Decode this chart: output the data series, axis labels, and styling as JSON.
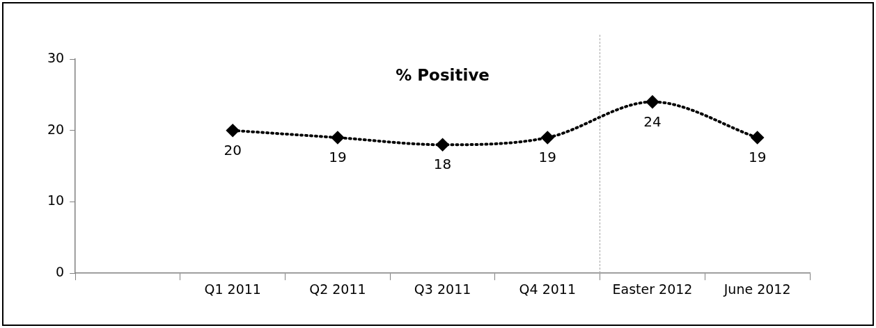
{
  "chart_data": {
    "type": "line",
    "title": "% Positive",
    "categories": [
      null,
      "Q1 2011",
      "Q2 2011",
      "Q3 2011",
      "Q4 2011",
      "Easter 2012",
      "June 2012"
    ],
    "series": [
      {
        "color": "#000000",
        "values": [
          null,
          20,
          19,
          18,
          19,
          24,
          19
        ]
      }
    ],
    "ylim": [
      0,
      30
    ],
    "yticks": [
      0,
      10,
      20,
      30
    ],
    "grid": false,
    "legend": false,
    "marker": "diamond",
    "line_style": "dotted",
    "data_labels": true
  }
}
